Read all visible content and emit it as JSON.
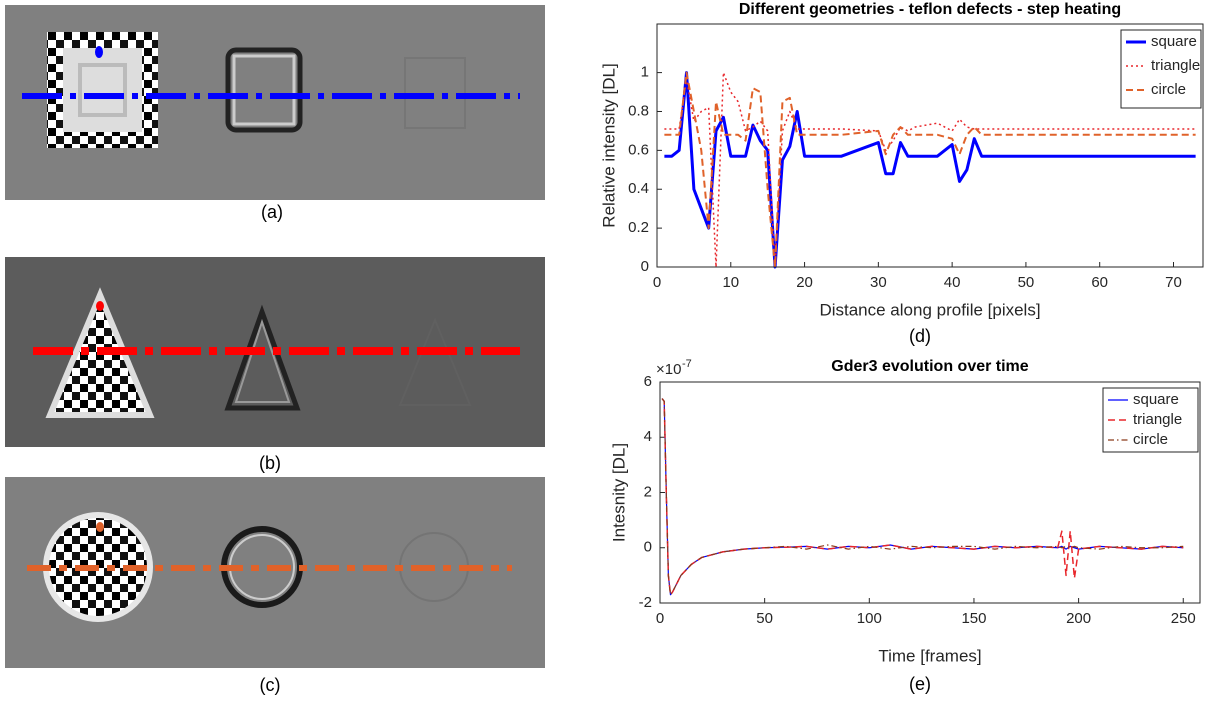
{
  "image_panels": [
    {
      "label": "(a)"
    },
    {
      "label": "(b)"
    },
    {
      "label": "(c)"
    }
  ],
  "chart_data": [
    {
      "type": "line",
      "caption": "(d)",
      "title": "Different geometries - teflon defects - step heating",
      "x_label": "Distance along profile [pixels]",
      "y_label": "Relative intensity [DL]",
      "xlim": [
        0,
        74
      ],
      "ylim": [
        0,
        1.25
      ],
      "xticks": [
        0,
        10,
        20,
        30,
        40,
        50,
        60,
        70
      ],
      "yticks": [
        0,
        0.2,
        0.4,
        0.6,
        0.8,
        1
      ],
      "legend": "top-right",
      "x": [
        1,
        2,
        3,
        4,
        5,
        6,
        7,
        8,
        9,
        10,
        11,
        12,
        13,
        14,
        15,
        16,
        17,
        18,
        19,
        20,
        25,
        30,
        31,
        32,
        33,
        34,
        35,
        38,
        40,
        41,
        42,
        43,
        44,
        45,
        50,
        60,
        73
      ],
      "series": [
        {
          "name": "square",
          "color": "#0000ff",
          "dash": "solid",
          "width": 3,
          "values": [
            0.57,
            0.57,
            0.6,
            1.0,
            0.4,
            0.3,
            0.2,
            0.7,
            0.77,
            0.57,
            0.57,
            0.57,
            0.73,
            0.65,
            0.6,
            0.0,
            0.55,
            0.62,
            0.8,
            0.57,
            0.57,
            0.64,
            0.48,
            0.48,
            0.64,
            0.57,
            0.57,
            0.57,
            0.63,
            0.44,
            0.5,
            0.66,
            0.57,
            0.57,
            0.57,
            0.57,
            0.57
          ]
        },
        {
          "name": "triangle",
          "color": "#e8262b",
          "dash": "dotted",
          "width": 1.5,
          "values": [
            0.71,
            0.71,
            0.71,
            0.97,
            0.75,
            0.8,
            0.82,
            0.0,
            1.0,
            0.9,
            0.85,
            0.7,
            0.72,
            0.75,
            0.7,
            0.0,
            0.7,
            0.8,
            0.71,
            0.71,
            0.71,
            0.7,
            0.6,
            0.65,
            0.72,
            0.7,
            0.72,
            0.74,
            0.7,
            0.76,
            0.72,
            0.71,
            0.71,
            0.71,
            0.71,
            0.71,
            0.71
          ]
        },
        {
          "name": "circle",
          "color": "#e0622a",
          "dash": "dashed",
          "width": 2,
          "values": [
            0.68,
            0.68,
            0.68,
            1.0,
            0.8,
            0.6,
            0.2,
            0.85,
            0.68,
            0.68,
            0.68,
            0.65,
            0.92,
            0.9,
            0.4,
            0.0,
            0.85,
            0.87,
            0.68,
            0.68,
            0.68,
            0.7,
            0.58,
            0.68,
            0.72,
            0.68,
            0.68,
            0.68,
            0.66,
            0.58,
            0.68,
            0.72,
            0.68,
            0.68,
            0.68,
            0.68,
            0.68
          ]
        }
      ]
    },
    {
      "type": "line",
      "caption": "(e)",
      "title": "Gder3 evolution over time",
      "x_label": "Time [frames]",
      "y_label": "Intesnity [DL]",
      "y_scale_label": {
        "base": "×10",
        "exponent": "-7"
      },
      "xlim": [
        0,
        258
      ],
      "ylim": [
        -2,
        6
      ],
      "xticks": [
        0,
        50,
        100,
        150,
        200,
        250
      ],
      "yticks": [
        -2,
        0,
        2,
        4,
        6
      ],
      "legend": "top-right",
      "x": [
        1,
        2,
        3,
        4,
        5,
        6,
        8,
        10,
        15,
        20,
        30,
        40,
        50,
        60,
        70,
        80,
        90,
        100,
        110,
        120,
        130,
        140,
        150,
        160,
        170,
        180,
        190,
        192,
        194,
        196,
        198,
        200,
        210,
        220,
        230,
        240,
        250
      ],
      "series": [
        {
          "name": "square",
          "color": "#0000ff",
          "dash": "solid",
          "width": 1.2,
          "values": [
            5.4,
            5.3,
            2,
            -1,
            -1.7,
            -1.6,
            -1.3,
            -1.0,
            -0.6,
            -0.35,
            -0.15,
            -0.05,
            0,
            0.02,
            0.05,
            -0.05,
            0.05,
            0,
            0.1,
            -0.05,
            0.05,
            0,
            -0.05,
            0.05,
            0,
            0.05,
            0,
            0.05,
            -0.05,
            0.05,
            0,
            -0.05,
            0.05,
            0,
            -0.05,
            0.05,
            0
          ]
        },
        {
          "name": "triangle",
          "color": "#e8262b",
          "dash": "dashed",
          "width": 1.5,
          "values": [
            5.4,
            5.3,
            2,
            -1,
            -1.7,
            -1.6,
            -1.3,
            -1.0,
            -0.6,
            -0.35,
            -0.15,
            -0.05,
            0,
            0.02,
            0.05,
            -0.05,
            0.05,
            0,
            0.1,
            -0.05,
            0.05,
            0,
            -0.05,
            0.05,
            0,
            0.05,
            0,
            0.6,
            -1.0,
            0.6,
            -1.1,
            -0.05,
            0.05,
            0,
            -0.05,
            0.05,
            0
          ]
        },
        {
          "name": "circle",
          "color": "#8b3a1a",
          "dash": "dashdot",
          "width": 1.2,
          "values": [
            5.4,
            5.3,
            2,
            -1,
            -1.7,
            -1.6,
            -1.3,
            -1.0,
            -0.6,
            -0.35,
            -0.15,
            -0.05,
            0,
            0.05,
            -0.05,
            0.1,
            -0.05,
            0.05,
            -0.05,
            0.05,
            0,
            0.05,
            0.05,
            -0.05,
            0.05,
            0,
            0.05,
            0,
            0.05,
            0,
            0.05,
            0,
            -0.05,
            0.05,
            0,
            0,
            0.05
          ]
        }
      ]
    }
  ]
}
